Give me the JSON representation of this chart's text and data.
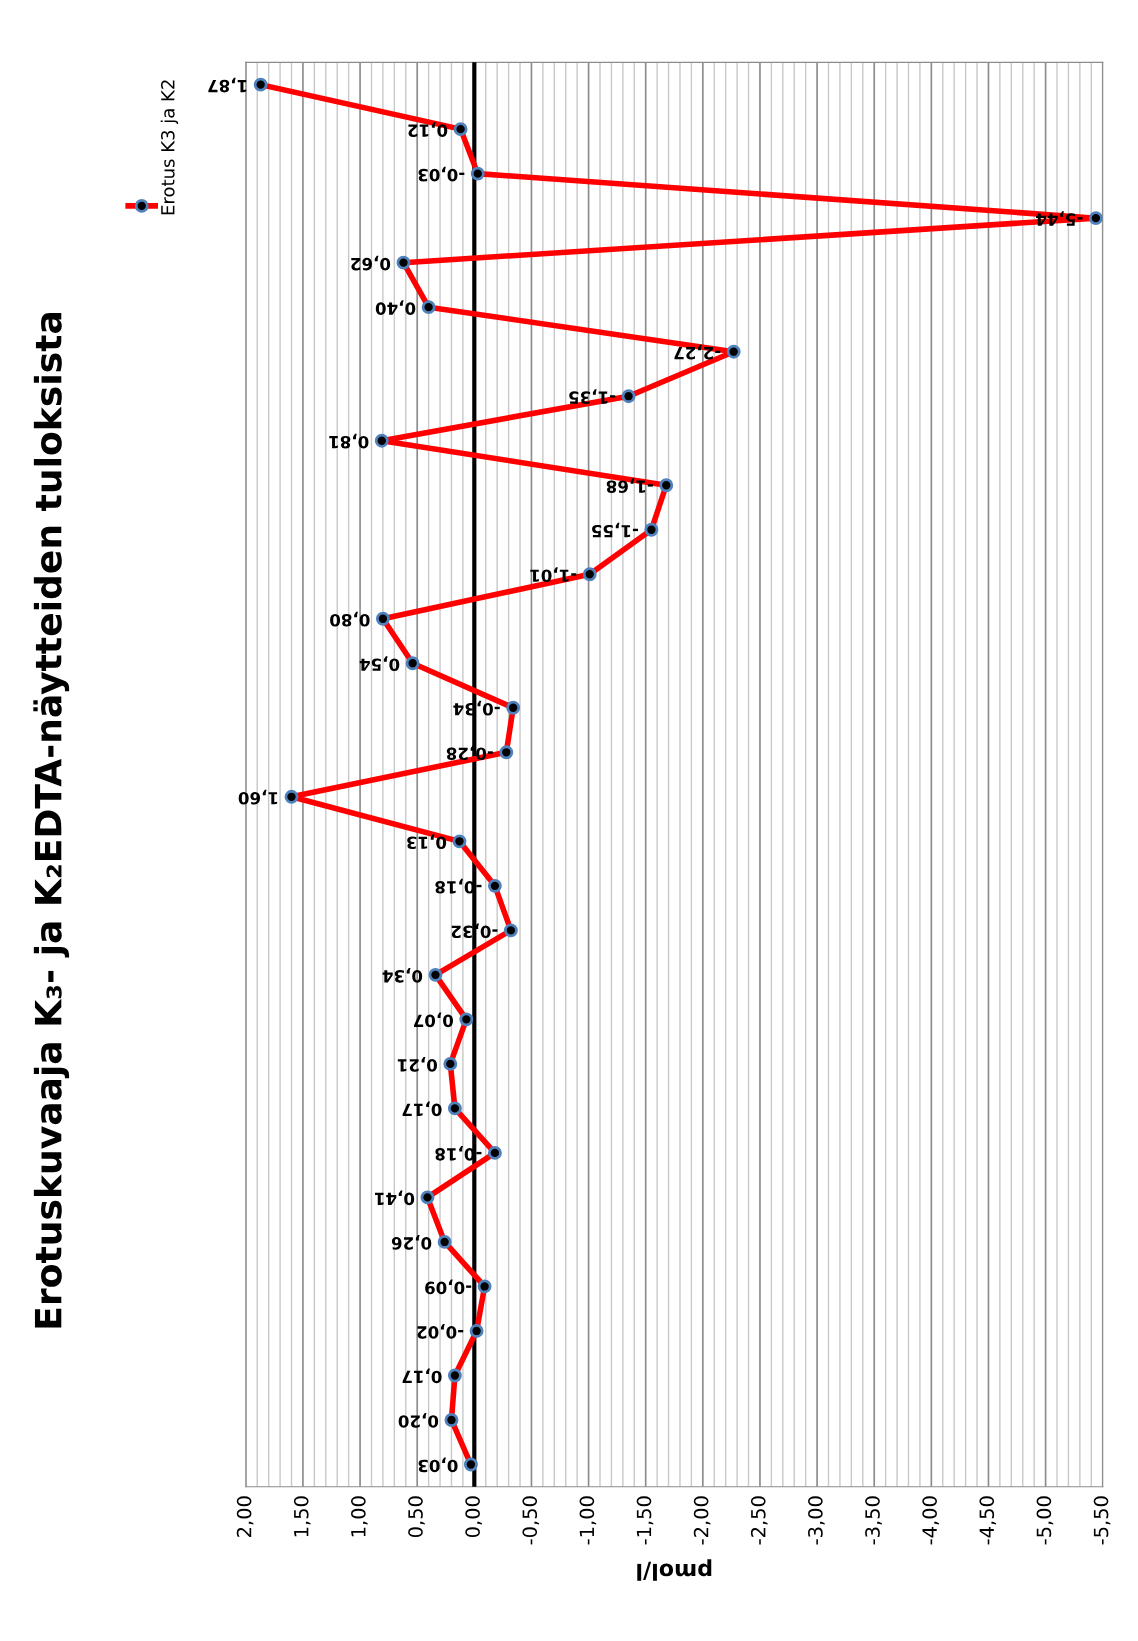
{
  "chart_data": {
    "type": "line",
    "orientation": "horizontal",
    "title": "Erotuskuvaaja K₃- ja K₂EDTA-näytteiden tuloksista",
    "xlabel": "pmol/l",
    "categories": [
      null,
      null,
      null,
      null,
      null,
      null,
      null,
      null,
      null,
      null,
      null,
      null,
      null,
      null,
      null,
      null,
      null,
      null,
      null,
      null,
      null,
      null,
      null,
      null,
      null,
      null,
      null,
      null,
      null,
      null,
      null,
      null
    ],
    "series": [
      {
        "name": "Erotus K3 ja K2",
        "color": "#ff0000",
        "values": [
          1.87,
          0.12,
          -0.03,
          -5.44,
          0.62,
          0.4,
          -2.27,
          -1.35,
          0.81,
          -1.68,
          -1.55,
          -1.01,
          0.8,
          0.54,
          -0.34,
          -0.28,
          1.6,
          0.13,
          -0.18,
          -0.32,
          0.34,
          0.07,
          0.21,
          0.17,
          -0.18,
          0.41,
          0.26,
          -0.09,
          -0.02,
          0.17,
          0.2,
          0.03
        ],
        "value_labels": [
          "1,87",
          "0,12",
          "-0,03",
          "-5,44",
          "0,62",
          "0,40",
          "-2,27",
          "-1,35",
          "0,81",
          "-1,68",
          "-1,55",
          "-1,01",
          "0,80",
          "0,54",
          "-0,34",
          "-0,28",
          "1,60",
          "0,13",
          "-0,18",
          "-0,32",
          "0,34",
          "0,07",
          "0,21",
          "0,17",
          "-0,18",
          "0,41",
          "0,26",
          "-0,09",
          "-0,02",
          "0,17",
          "0,20",
          "0,03"
        ]
      }
    ],
    "xlim": [
      2,
      -5.5
    ],
    "xticks": [
      {
        "value": 2,
        "label": "2,00"
      },
      {
        "value": 1.9,
        "label": null
      },
      {
        "value": 1.8,
        "label": null
      },
      {
        "value": 1.7,
        "label": null
      },
      {
        "value": 1.6,
        "label": null
      },
      {
        "value": 1.5,
        "label": "1,50"
      },
      {
        "value": 1.4,
        "label": null
      },
      {
        "value": 1.3,
        "label": null
      },
      {
        "value": 1.2,
        "label": null
      },
      {
        "value": 1.1,
        "label": null
      },
      {
        "value": 1,
        "label": "1,00"
      },
      {
        "value": 0.9,
        "label": null
      },
      {
        "value": 0.8,
        "label": null
      },
      {
        "value": 0.7,
        "label": null
      },
      {
        "value": 0.6,
        "label": null
      },
      {
        "value": 0.5,
        "label": "0,50"
      },
      {
        "value": 0.4,
        "label": null
      },
      {
        "value": 0.3,
        "label": null
      },
      {
        "value": 0.2,
        "label": null
      },
      {
        "value": 0.1,
        "label": null
      },
      {
        "value": 0,
        "label": "0,00"
      },
      {
        "value": -0.1,
        "label": null
      },
      {
        "value": -0.2,
        "label": null
      },
      {
        "value": -0.3,
        "label": null
      },
      {
        "value": -0.4,
        "label": null
      },
      {
        "value": -0.5,
        "label": "-0,50"
      },
      {
        "value": -0.6,
        "label": null
      },
      {
        "value": -0.7,
        "label": null
      },
      {
        "value": -0.8,
        "label": null
      },
      {
        "value": -0.9,
        "label": null
      },
      {
        "value": -1,
        "label": "-1,00"
      },
      {
        "value": -1.1,
        "label": null
      },
      {
        "value": -1.2,
        "label": null
      },
      {
        "value": -1.3,
        "label": null
      },
      {
        "value": -1.4,
        "label": null
      },
      {
        "value": -1.5,
        "label": "-1,50"
      },
      {
        "value": -1.6,
        "label": null
      },
      {
        "value": -1.7,
        "label": null
      },
      {
        "value": -1.8,
        "label": null
      },
      {
        "value": -1.9,
        "label": null
      },
      {
        "value": -2,
        "label": "-2,00"
      },
      {
        "value": -2.1,
        "label": null
      },
      {
        "value": -2.2,
        "label": null
      },
      {
        "value": -2.3,
        "label": null
      },
      {
        "value": -2.4,
        "label": null
      },
      {
        "value": -2.5,
        "label": "-2,50"
      },
      {
        "value": -2.6,
        "label": null
      },
      {
        "value": -2.7,
        "label": null
      },
      {
        "value": -2.8,
        "label": null
      },
      {
        "value": -2.9,
        "label": null
      },
      {
        "value": -3,
        "label": "-3,00"
      },
      {
        "value": -3.1,
        "label": null
      },
      {
        "value": -3.2,
        "label": null
      },
      {
        "value": -3.3,
        "label": null
      },
      {
        "value": -3.4,
        "label": null
      },
      {
        "value": -3.5,
        "label": "-3,50"
      },
      {
        "value": -3.6,
        "label": null
      },
      {
        "value": -3.7,
        "label": null
      },
      {
        "value": -3.8,
        "label": null
      },
      {
        "value": -3.9,
        "label": null
      },
      {
        "value": -4,
        "label": "-4,00"
      },
      {
        "value": -4.1,
        "label": null
      },
      {
        "value": -4.2,
        "label": null
      },
      {
        "value": -4.3,
        "label": null
      },
      {
        "value": -4.4,
        "label": null
      },
      {
        "value": -4.5,
        "label": "-4,50"
      },
      {
        "value": -4.6,
        "label": null
      },
      {
        "value": -4.7,
        "label": null
      },
      {
        "value": -4.8,
        "label": null
      },
      {
        "value": -4.9,
        "label": null
      },
      {
        "value": -5,
        "label": "-5,00"
      },
      {
        "value": -5.1,
        "label": null
      },
      {
        "value": -5.2,
        "label": null
      },
      {
        "value": -5.3,
        "label": null
      },
      {
        "value": -5.4,
        "label": null
      },
      {
        "value": -5.5,
        "label": "-5,50"
      }
    ],
    "ref_lines": [
      {
        "axis": "x",
        "value": 0,
        "color": "#000000"
      }
    ],
    "grid": "x",
    "legend": "top left",
    "marker": "circle",
    "line_style": "solid"
  }
}
